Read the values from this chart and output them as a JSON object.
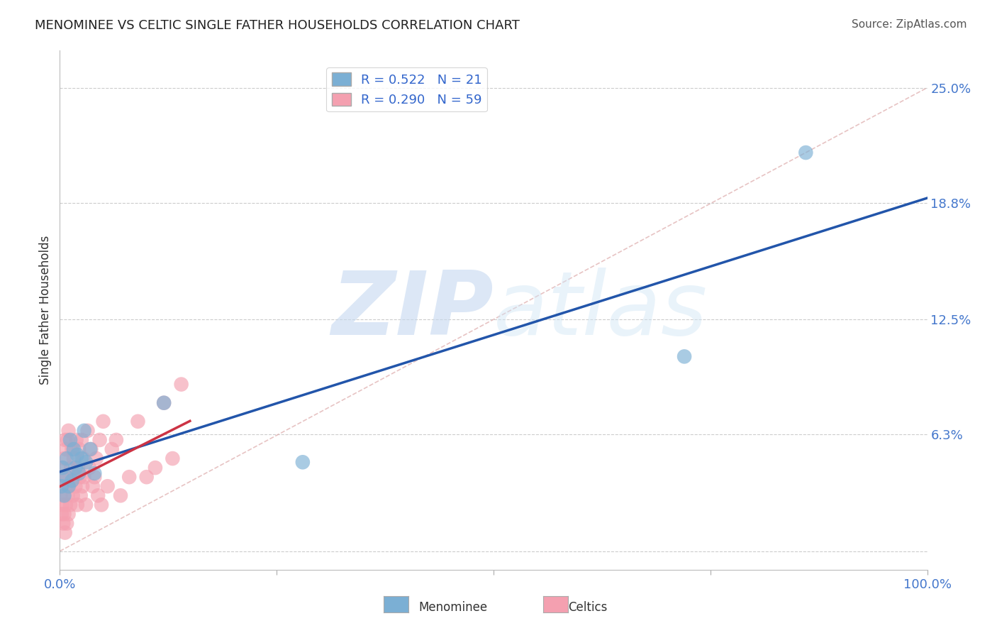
{
  "title": "MENOMINEE VS CELTIC SINGLE FATHER HOUSEHOLDS CORRELATION CHART",
  "source": "Source: ZipAtlas.com",
  "ylabel": "Single Father Households",
  "xlim": [
    0.0,
    1.0
  ],
  "ylim": [
    -0.01,
    0.27
  ],
  "ytick_positions": [
    0.0,
    0.063,
    0.125,
    0.188,
    0.25
  ],
  "ytick_labels": [
    "",
    "6.3%",
    "12.5%",
    "18.8%",
    "25.0%"
  ],
  "menominee_color": "#7bafd4",
  "celtics_color": "#f4a0b0",
  "menominee_line_color": "#2255aa",
  "celtics_line_color": "#cc3344",
  "diag_color": "#ddaaaa",
  "menominee_R": 0.522,
  "menominee_N": 21,
  "celtics_R": 0.29,
  "celtics_N": 59,
  "menominee_points_x": [
    0.002,
    0.003,
    0.005,
    0.007,
    0.008,
    0.01,
    0.012,
    0.014,
    0.016,
    0.018,
    0.02,
    0.022,
    0.025,
    0.028,
    0.03,
    0.035,
    0.04,
    0.12,
    0.28,
    0.72,
    0.86
  ],
  "menominee_points_y": [
    0.035,
    0.045,
    0.03,
    0.04,
    0.05,
    0.035,
    0.06,
    0.038,
    0.055,
    0.045,
    0.052,
    0.042,
    0.05,
    0.065,
    0.048,
    0.055,
    0.042,
    0.08,
    0.048,
    0.105,
    0.215
  ],
  "celtics_points_x": [
    0.001,
    0.002,
    0.002,
    0.003,
    0.003,
    0.004,
    0.004,
    0.005,
    0.005,
    0.006,
    0.006,
    0.007,
    0.007,
    0.008,
    0.008,
    0.009,
    0.009,
    0.01,
    0.01,
    0.011,
    0.012,
    0.013,
    0.014,
    0.015,
    0.016,
    0.017,
    0.018,
    0.019,
    0.02,
    0.021,
    0.022,
    0.023,
    0.024,
    0.025,
    0.026,
    0.027,
    0.028,
    0.03,
    0.032,
    0.034,
    0.036,
    0.038,
    0.04,
    0.042,
    0.044,
    0.046,
    0.048,
    0.05,
    0.055,
    0.06,
    0.065,
    0.07,
    0.08,
    0.09,
    0.1,
    0.11,
    0.12,
    0.13,
    0.14
  ],
  "celtics_points_y": [
    0.03,
    0.035,
    0.02,
    0.025,
    0.045,
    0.015,
    0.04,
    0.02,
    0.05,
    0.01,
    0.06,
    0.025,
    0.055,
    0.015,
    0.04,
    0.03,
    0.06,
    0.02,
    0.065,
    0.035,
    0.025,
    0.045,
    0.055,
    0.03,
    0.05,
    0.04,
    0.035,
    0.06,
    0.025,
    0.045,
    0.055,
    0.04,
    0.03,
    0.06,
    0.035,
    0.05,
    0.04,
    0.025,
    0.065,
    0.045,
    0.055,
    0.035,
    0.04,
    0.05,
    0.03,
    0.06,
    0.025,
    0.07,
    0.035,
    0.055,
    0.06,
    0.03,
    0.04,
    0.07,
    0.04,
    0.045,
    0.08,
    0.05,
    0.09
  ],
  "background_color": "#ffffff",
  "grid_color": "#cccccc",
  "watermark_zip": "ZIP",
  "watermark_atlas": "atlas",
  "watermark_color": "#cce0f5"
}
